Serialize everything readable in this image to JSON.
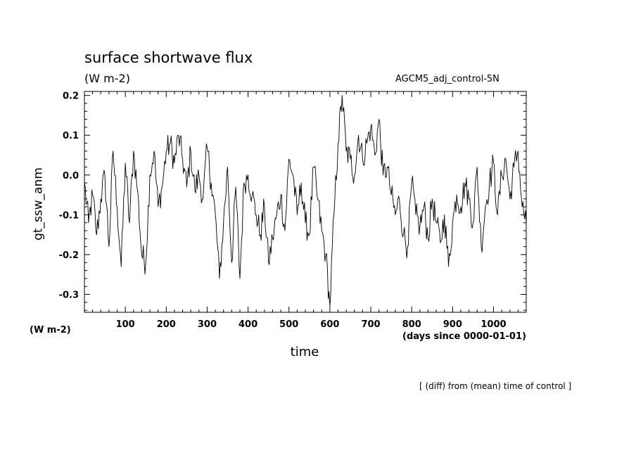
{
  "chart_data": {
    "type": "line",
    "title": "surface shortwave flux",
    "units": "(W m-2)",
    "dataset": "AGCM5_adj_control-5N",
    "ylabel": "gt_ssw_anm",
    "yunits": "(W m-2)",
    "xlabel": "time",
    "xunits": "(days since 0000-01-01)",
    "note": "[ (diff) from (mean) time of control ]",
    "xlim": [
      0,
      1080
    ],
    "ylim": [
      -0.345,
      0.21
    ],
    "xticks": [
      100,
      200,
      300,
      400,
      500,
      600,
      700,
      800,
      900,
      1000
    ],
    "yticks": [
      0.2,
      0.1,
      0.0,
      -0.1,
      -0.2,
      -0.3
    ],
    "ytick_labels": [
      "0.2",
      "0.1",
      "0.0",
      "-0.1",
      "-0.2",
      "-0.3"
    ],
    "grid": false,
    "series": [
      {
        "x": [
          0,
          10,
          20,
          30,
          40,
          50,
          60,
          70,
          80,
          90,
          100,
          110,
          120,
          130,
          140,
          150,
          160,
          170,
          180,
          190,
          200,
          210,
          220,
          230,
          240,
          250,
          260,
          270,
          280,
          290,
          300,
          310,
          320,
          330,
          340,
          350,
          360,
          370,
          380,
          390,
          400,
          410,
          420,
          430,
          440,
          450,
          460,
          470,
          480,
          490,
          500,
          510,
          520,
          530,
          540,
          550,
          560,
          570,
          580,
          590,
          600,
          610,
          620,
          630,
          640,
          650,
          660,
          670,
          680,
          690,
          700,
          710,
          720,
          730,
          740,
          750,
          760,
          770,
          780,
          790,
          800,
          810,
          820,
          830,
          840,
          850,
          860,
          870,
          880,
          890,
          900,
          910,
          920,
          930,
          940,
          950,
          960,
          970,
          980,
          990,
          1000,
          1010,
          1020,
          1030,
          1040,
          1050,
          1060,
          1070,
          1080
        ],
        "y": [
          -0.02,
          -0.12,
          -0.05,
          -0.15,
          -0.06,
          0.0,
          -0.18,
          0.06,
          -0.08,
          -0.23,
          0.03,
          -0.12,
          0.06,
          -0.04,
          -0.2,
          -0.22,
          0.0,
          0.06,
          -0.08,
          -0.03,
          0.06,
          0.08,
          0.03,
          0.1,
          0.04,
          -0.03,
          0.06,
          -0.04,
          0.0,
          -0.06,
          0.07,
          -0.02,
          -0.1,
          -0.26,
          -0.12,
          0.02,
          -0.22,
          -0.03,
          -0.26,
          -0.02,
          0.0,
          -0.05,
          -0.1,
          -0.15,
          -0.08,
          -0.22,
          -0.16,
          -0.1,
          -0.05,
          -0.14,
          0.04,
          0.0,
          -0.1,
          -0.02,
          -0.12,
          -0.15,
          0.02,
          -0.06,
          -0.14,
          -0.2,
          -0.33,
          -0.1,
          0.08,
          0.2,
          0.06,
          0.04,
          0.0,
          0.1,
          0.04,
          0.08,
          0.12,
          0.05,
          0.14,
          0.0,
          0.02,
          -0.05,
          -0.1,
          -0.06,
          -0.15,
          -0.18,
          -0.02,
          -0.1,
          -0.13,
          -0.08,
          -0.16,
          -0.06,
          -0.12,
          -0.17,
          -0.1,
          -0.23,
          -0.12,
          -0.05,
          -0.08,
          -0.02,
          -0.06,
          -0.12,
          0.02,
          -0.18,
          -0.08,
          -0.02,
          0.03,
          -0.1,
          0.0,
          0.04,
          -0.06,
          0.02,
          0.06,
          -0.08,
          -0.12
        ]
      }
    ]
  }
}
